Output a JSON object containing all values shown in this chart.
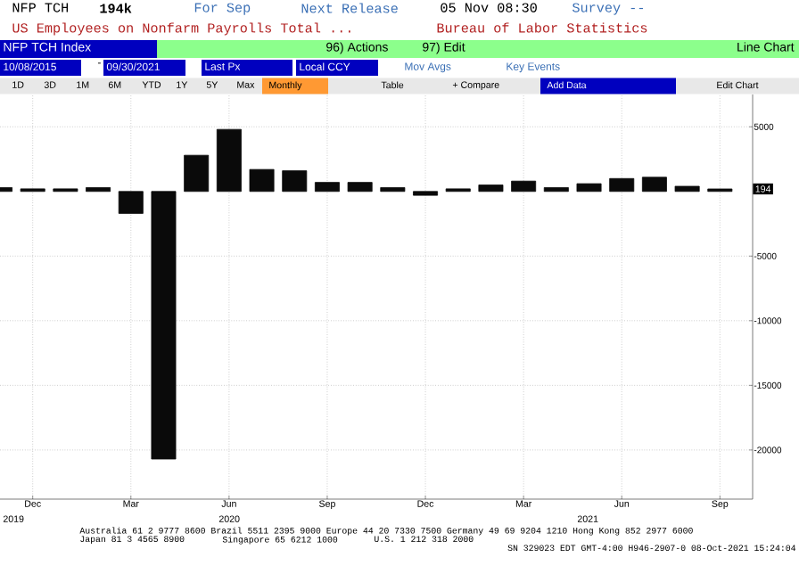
{
  "chart_data": {
    "type": "bar",
    "title": "US Employees on Nonfarm Payrolls Total ...",
    "x": [
      "2019-11",
      "2019-12",
      "2020-01",
      "2020-02",
      "2020-03",
      "2020-04",
      "2020-05",
      "2020-06",
      "2020-07",
      "2020-08",
      "2020-09",
      "2020-10",
      "2020-11",
      "2020-12",
      "2021-01",
      "2021-02",
      "2021-03",
      "2021-04",
      "2021-05",
      "2021-06",
      "2021-07",
      "2021-08",
      "2021-09"
    ],
    "values": [
      300,
      200,
      200,
      300,
      -1700,
      -20700,
      2800,
      4800,
      1700,
      1600,
      700,
      700,
      300,
      -300,
      200,
      500,
      800,
      300,
      600,
      1000,
      1100,
      400,
      194
    ],
    "color": "#0a0a0a",
    "xlim": [
      "2019-11",
      "2021-10"
    ],
    "xticks": [
      {
        "value": "2019-12",
        "label": "Dec"
      },
      {
        "value": "2020-03",
        "label": "Mar"
      },
      {
        "value": "2020-06",
        "label": "Jun"
      },
      {
        "value": "2020-09",
        "label": "Sep"
      },
      {
        "value": "2020-12",
        "label": "Dec"
      },
      {
        "value": "2021-03",
        "label": "Mar"
      },
      {
        "value": "2021-06",
        "label": "Jun"
      },
      {
        "value": "2021-09",
        "label": "Sep"
      }
    ],
    "ylim": [
      -23800,
      7500
    ],
    "yticks": [
      5000,
      -5000,
      -10000,
      -15000,
      -20000
    ],
    "grid": true,
    "annotations": [
      "NFP TCH",
      "194k",
      "For Sep",
      "Next Release",
      "05 Nov 08:30",
      "Survey --",
      "Bureau of Labor Statistics",
      "NFP TCH Index",
      "96) Actions",
      "97) Edit",
      "Line Chart",
      "10/08/2015",
      "-",
      "09/30/2021",
      "Last Px",
      "Local CCY",
      "Mov Avgs",
      "Key Events",
      "1D",
      "3D",
      "1M",
      "6M",
      "YTD",
      "1Y",
      "5Y",
      "Max",
      "Monthly",
      "Table",
      "+ Compare",
      "Add Data",
      "Edit Chart",
      "2019",
      "2020",
      "2021",
      "Australia 61 2 9777 8600 Brazil 5511 2395 9000 Europe 44 20 7330 7500 Germany 49 69 9204 1210 Hong Kong 852 2977 6000",
      "Japan 81 3 4565 8900",
      "Singapore 65 6212 1000",
      "U.S. 1 212 318 2000",
      "SN 329023 EDT GMT-4:00 H946-2907-0 08-Oct-2021 15:24:04",
      {
        "text": "194",
        "y": 194
      }
    ]
  }
}
